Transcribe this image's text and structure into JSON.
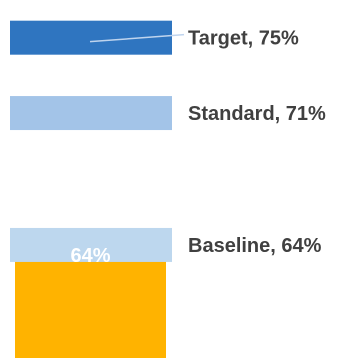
{
  "chart_data": {
    "type": "bar",
    "title": "",
    "xlabel": "",
    "ylabel": "",
    "categories": [
      ""
    ],
    "series": [
      {
        "values": [
          64
        ],
        "data_labels": [
          "64%"
        ],
        "color": "#FFB300"
      }
    ],
    "reference_lines": [
      {
        "label": "Target, 75%",
        "value": 75,
        "color": "#2F75C0"
      },
      {
        "label": "Standard, 71%",
        "value": 71,
        "color": "#A3C4E8"
      },
      {
        "label": "Baseline, 64%",
        "value": 64,
        "color": "#BDD7EE"
      }
    ],
    "ylim_visible": [
      58,
      77
    ],
    "grid": false,
    "legend": "none"
  }
}
